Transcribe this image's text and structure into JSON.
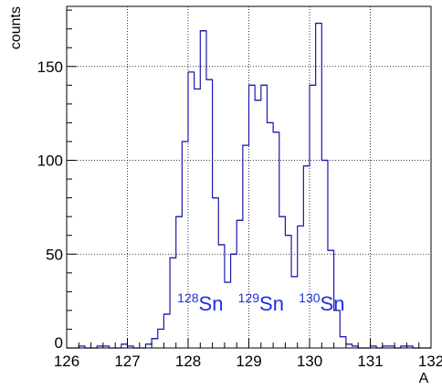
{
  "chart_data": {
    "type": "histogram",
    "title": "",
    "xlabel": "A",
    "ylabel": "counts",
    "xlim": [
      126,
      132
    ],
    "ylim": [
      0,
      182
    ],
    "grid": true,
    "bin_width": 0.1,
    "xticks": [
      "126",
      "127",
      "128",
      "129",
      "130",
      "131",
      "132"
    ],
    "yticks": [
      "0",
      "50",
      "100",
      "150"
    ],
    "line_color": "#1a1aa8",
    "label_color": "#1f2ee0",
    "annotations": [
      {
        "mass": "128",
        "element": "Sn",
        "x": 128.2,
        "y": 20
      },
      {
        "mass": "129",
        "element": "Sn",
        "x": 129.2,
        "y": 20
      },
      {
        "mass": "130",
        "element": "Sn",
        "x": 130.2,
        "y": 20
      }
    ],
    "bins": [
      {
        "x": 126.2,
        "y": 1
      },
      {
        "x": 126.5,
        "y": 1
      },
      {
        "x": 126.6,
        "y": 1
      },
      {
        "x": 126.9,
        "y": 2
      },
      {
        "x": 127.0,
        "y": 1
      },
      {
        "x": 127.3,
        "y": 2
      },
      {
        "x": 127.4,
        "y": 5
      },
      {
        "x": 127.5,
        "y": 10
      },
      {
        "x": 127.6,
        "y": 18
      },
      {
        "x": 127.7,
        "y": 48
      },
      {
        "x": 127.8,
        "y": 70
      },
      {
        "x": 127.9,
        "y": 110
      },
      {
        "x": 128.0,
        "y": 147
      },
      {
        "x": 128.1,
        "y": 138
      },
      {
        "x": 128.2,
        "y": 169
      },
      {
        "x": 128.3,
        "y": 143
      },
      {
        "x": 128.4,
        "y": 80
      },
      {
        "x": 128.5,
        "y": 55
      },
      {
        "x": 128.6,
        "y": 35
      },
      {
        "x": 128.7,
        "y": 50
      },
      {
        "x": 128.8,
        "y": 68
      },
      {
        "x": 128.9,
        "y": 108
      },
      {
        "x": 129.0,
        "y": 140
      },
      {
        "x": 129.1,
        "y": 132
      },
      {
        "x": 129.2,
        "y": 140
      },
      {
        "x": 129.3,
        "y": 120
      },
      {
        "x": 129.4,
        "y": 115
      },
      {
        "x": 129.5,
        "y": 70
      },
      {
        "x": 129.6,
        "y": 60
      },
      {
        "x": 129.7,
        "y": 38
      },
      {
        "x": 129.8,
        "y": 65
      },
      {
        "x": 129.9,
        "y": 97
      },
      {
        "x": 130.0,
        "y": 140
      },
      {
        "x": 130.1,
        "y": 173
      },
      {
        "x": 130.2,
        "y": 100
      },
      {
        "x": 130.3,
        "y": 52
      },
      {
        "x": 130.4,
        "y": 20
      },
      {
        "x": 130.5,
        "y": 6
      },
      {
        "x": 130.6,
        "y": 2
      },
      {
        "x": 130.7,
        "y": 1
      },
      {
        "x": 131.0,
        "y": 1
      },
      {
        "x": 131.2,
        "y": 1
      },
      {
        "x": 131.3,
        "y": 1
      },
      {
        "x": 131.5,
        "y": 1
      },
      {
        "x": 131.6,
        "y": 1
      }
    ]
  }
}
